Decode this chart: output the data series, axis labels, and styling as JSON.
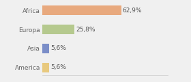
{
  "categories": [
    "Africa",
    "Europa",
    "Asia",
    "America"
  ],
  "values": [
    62.9,
    25.8,
    5.6,
    5.6
  ],
  "labels": [
    "62,9%",
    "25,8%",
    "5,6%",
    "5,6%"
  ],
  "bar_colors": [
    "#e8a97e",
    "#b5c98e",
    "#7b8ec8",
    "#e8c97e"
  ],
  "background_color": "#f0f0f0",
  "xlim": [
    0,
    100
  ],
  "label_fontsize": 6.5,
  "tick_fontsize": 6.5,
  "bar_height": 0.5
}
